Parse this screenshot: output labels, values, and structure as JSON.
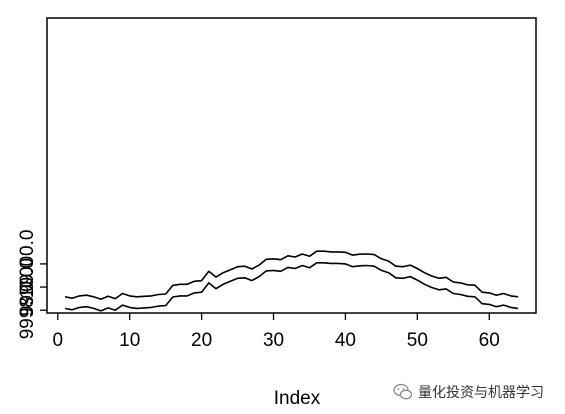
{
  "chart_data": {
    "type": "line",
    "title": "",
    "xlabel": "Index",
    "ylabel": "",
    "xlim": [
      1,
      64
    ],
    "ylim": [
      9997.88,
      10010.62
    ],
    "x_ticks": [
      0,
      10,
      20,
      30,
      40,
      50,
      60
    ],
    "x_tick_labels": [
      "0",
      "10",
      "20",
      "30",
      "40",
      "50",
      "60"
    ],
    "y_ticks": [
      9998,
      9999,
      10000
    ],
    "y_tick_labels": [
      "9998.0",
      "9999.0",
      "10000.0"
    ],
    "grid": false,
    "legend": "none",
    "series": [
      {
        "values": [
          9998.58,
          9998.52,
          9998.62,
          9998.65,
          9998.58,
          9998.47,
          9998.6,
          9998.5,
          9998.72,
          9998.62,
          9998.58,
          9998.6,
          9998.62,
          9998.68,
          9998.7,
          9999.07,
          9999.12,
          9999.12,
          9999.25,
          9999.28,
          9999.68,
          9999.43,
          9999.62,
          9999.75,
          9999.88,
          9999.9,
          9999.78,
          9999.95,
          10000.2,
          10000.22,
          10000.18,
          10000.35,
          10000.3,
          10000.43,
          10000.33,
          10000.55,
          10000.55,
          10000.52,
          10000.52,
          10000.5,
          10000.38,
          10000.42,
          10000.43,
          10000.4,
          10000.22,
          10000.12,
          9999.9,
          9999.88,
          9999.95,
          9999.8,
          9999.62,
          9999.48,
          9999.38,
          9999.42,
          9999.22,
          9999.18,
          9999.1,
          9999.08,
          9998.78,
          9998.75,
          9998.65,
          9998.72,
          9998.62,
          9998.58
        ]
      },
      {
        "values": [
          9998.08,
          9998.02,
          9998.12,
          9998.15,
          9998.08,
          9997.97,
          9998.1,
          9998.0,
          9998.22,
          9998.12,
          9998.08,
          9998.1,
          9998.12,
          9998.18,
          9998.2,
          9998.57,
          9998.62,
          9998.62,
          9998.75,
          9998.78,
          9999.18,
          9998.93,
          9999.12,
          9999.25,
          9999.38,
          9999.4,
          9999.28,
          9999.45,
          9999.7,
          9999.72,
          9999.68,
          9999.85,
          9999.8,
          9999.93,
          9999.83,
          10000.05,
          10000.05,
          10000.02,
          10000.02,
          10000.0,
          9999.88,
          9999.92,
          9999.93,
          9999.9,
          9999.72,
          9999.62,
          9999.4,
          9999.38,
          9999.45,
          9999.3,
          9999.12,
          9998.98,
          9998.88,
          9998.92,
          9998.72,
          9998.68,
          9998.6,
          9998.58,
          9998.28,
          9998.25,
          9998.15,
          9998.22,
          9998.12,
          9998.08
        ]
      }
    ],
    "colors": {
      "line": "#000000",
      "frame": "#000000",
      "background": "#ffffff"
    }
  },
  "watermark": {
    "text": "量化投资与机器学习",
    "icon": "wechat-icon"
  }
}
